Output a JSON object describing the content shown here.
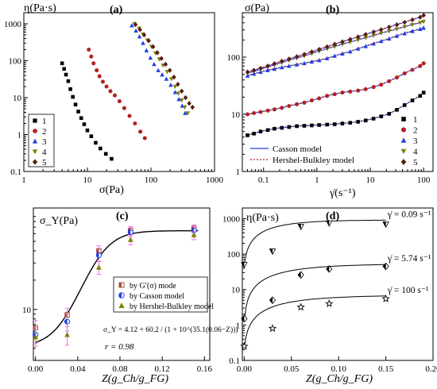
{
  "chart_data": [
    {
      "panel": "(a)",
      "type": "scatter",
      "xscale": "log",
      "yscale": "log",
      "xlim": [
        1,
        1000
      ],
      "ylim": [
        0.1,
        2000
      ],
      "xticks": [
        "1",
        "10",
        "100",
        "1000"
      ],
      "yticks": [
        "0.1",
        "1",
        "10",
        "100",
        "1000"
      ],
      "xlabel": "σ(Pa)",
      "ylabel": "η(Pa·s)",
      "legend_position": "bottom-left",
      "series": [
        {
          "name": "1",
          "marker": "square",
          "color": "#000000",
          "x": [
            4.0,
            4.3,
            4.6,
            5.0,
            5.4,
            5.9,
            6.5,
            7.2,
            8.0,
            8.9,
            10.0,
            11.5,
            13.5,
            16.0,
            19.5,
            24.0
          ],
          "y": [
            85,
            60,
            42,
            28,
            17,
            10.5,
            6.5,
            4.2,
            2.8,
            1.9,
            1.3,
            0.9,
            0.6,
            0.42,
            0.3,
            0.22
          ]
        },
        {
          "name": "2",
          "marker": "circle",
          "color": "#b22222",
          "x": [
            10.5,
            11.5,
            12.5,
            14.0,
            15.5,
            17.5,
            20.0,
            23.0,
            27.0,
            32.0,
            38.0,
            46.0,
            56.0,
            68.0,
            80.0
          ],
          "y": [
            200,
            130,
            85,
            55,
            38,
            27,
            20,
            15,
            11.5,
            8.0,
            5.2,
            3.2,
            2.0,
            1.2,
            0.8
          ]
        },
        {
          "name": "3",
          "marker": "triangle-up",
          "color": "#1f3fe0",
          "x": [
            50,
            58,
            66,
            75,
            85,
            98,
            112,
            130,
            150,
            175,
            205,
            240,
            275,
            310,
            345
          ],
          "y": [
            900,
            650,
            450,
            300,
            190,
            120,
            80,
            55,
            42,
            32,
            22,
            14,
            9,
            6,
            3.8
          ]
        },
        {
          "name": "4",
          "marker": "triangle-down",
          "color": "#808000",
          "x": [
            55,
            65,
            75,
            88,
            102,
            118,
            135,
            155,
            180,
            210,
            240,
            270,
            305,
            340,
            380
          ],
          "y": [
            1000,
            750,
            520,
            360,
            240,
            160,
            110,
            75,
            50,
            32,
            20,
            13,
            8.5,
            5.5,
            3.8
          ]
        },
        {
          "name": "5",
          "marker": "diamond",
          "color": "#5a1e14",
          "x": [
            57,
            67,
            78,
            92,
            108,
            126,
            146,
            170,
            198,
            230,
            265,
            305,
            350,
            400,
            450
          ],
          "y": [
            950,
            700,
            500,
            350,
            240,
            165,
            115,
            80,
            55,
            36,
            23,
            15,
            10,
            7,
            5.5
          ]
        }
      ]
    },
    {
      "panel": "(b)",
      "type": "scatter",
      "xscale": "log",
      "yscale": "log",
      "xlim": [
        0.04,
        150
      ],
      "ylim": [
        1,
        600
      ],
      "xticks": [
        "0.1",
        "1",
        "10",
        "100"
      ],
      "yticks": [
        "1",
        "10",
        "100"
      ],
      "xlabel": "γ̇(s⁻¹)",
      "ylabel": "σ(Pa)",
      "legend_position": "bottom-right",
      "model_legend": [
        "Casson model",
        "Hershel-Bulkley model"
      ],
      "series": [
        {
          "name": "1",
          "marker": "square",
          "color": "#000000",
          "x": [
            0.05,
            0.066,
            0.088,
            0.12,
            0.16,
            0.22,
            0.3,
            0.42,
            0.58,
            0.8,
            1.1,
            1.55,
            2.15,
            3.0,
            4.2,
            5.9,
            8.2,
            11.5,
            16,
            22.5,
            31.5,
            44,
            61.5,
            86,
            100
          ],
          "y": [
            4.3,
            4.6,
            5.0,
            5.3,
            5.6,
            5.8,
            6.0,
            6.2,
            6.3,
            6.4,
            6.5,
            6.6,
            6.7,
            6.9,
            7.1,
            7.4,
            7.8,
            8.4,
            9.2,
            10.2,
            12,
            14.5,
            17.5,
            21,
            24
          ]
        },
        {
          "name": "2",
          "marker": "circle",
          "color": "#b22222",
          "x": [
            0.05,
            0.066,
            0.088,
            0.12,
            0.16,
            0.22,
            0.3,
            0.42,
            0.58,
            0.8,
            1.1,
            1.55,
            2.15,
            3.0,
            4.2,
            5.9,
            8.2,
            11.5,
            16,
            22.5,
            31.5,
            44,
            61.5,
            86,
            100
          ],
          "y": [
            10,
            10.5,
            11,
            11.6,
            12.2,
            13,
            14,
            15,
            16,
            17.5,
            19,
            21,
            22.5,
            24,
            25,
            26,
            27.5,
            30,
            33,
            38,
            44,
            52,
            60,
            70,
            78
          ]
        },
        {
          "name": "3",
          "marker": "triangle-up",
          "color": "#1f3fe0",
          "x": [
            0.05,
            0.066,
            0.088,
            0.12,
            0.16,
            0.22,
            0.3,
            0.42,
            0.58,
            0.8,
            1.1,
            1.55,
            2.15,
            3.0,
            4.2,
            5.9,
            8.2,
            11.5,
            16,
            22.5,
            31.5,
            44,
            61.5,
            86,
            100
          ],
          "y": [
            47,
            51,
            55,
            59,
            62,
            66,
            70,
            74,
            78,
            83,
            88,
            95,
            105,
            115,
            125,
            140,
            155,
            172,
            190,
            210,
            235,
            260,
            285,
            310,
            325
          ]
        },
        {
          "name": "4",
          "marker": "triangle-down",
          "color": "#808000",
          "x": [
            0.05,
            0.066,
            0.088,
            0.12,
            0.16,
            0.22,
            0.3,
            0.42,
            0.58,
            0.8,
            1.1,
            1.55,
            2.15,
            3.0,
            4.2,
            5.9,
            8.2,
            11.5,
            16,
            22.5,
            31.5,
            44,
            61.5,
            86,
            100
          ],
          "y": [
            52,
            56,
            61,
            67,
            73,
            80,
            88,
            96,
            105,
            115,
            127,
            140,
            153,
            168,
            183,
            200,
            218,
            238,
            262,
            285,
            310,
            340,
            370,
            400,
            420
          ]
        },
        {
          "name": "5",
          "marker": "diamond",
          "color": "#5a1e14",
          "x": [
            0.05,
            0.066,
            0.088,
            0.12,
            0.16,
            0.22,
            0.3,
            0.42,
            0.58,
            0.8,
            1.1,
            1.55,
            2.15,
            3.0,
            4.2,
            5.9,
            8.2,
            11.5,
            16,
            22.5,
            31.5,
            44,
            61.5,
            86,
            100
          ],
          "y": [
            55,
            59,
            64,
            70,
            77,
            85,
            93,
            102,
            112,
            124,
            137,
            152,
            168,
            186,
            205,
            226,
            250,
            275,
            303,
            335,
            370,
            408,
            450,
            500,
            540
          ]
        }
      ]
    },
    {
      "panel": "(c)",
      "type": "scatter",
      "xscale": "linear",
      "yscale": "log",
      "xlim": [
        -0.002,
        0.165
      ],
      "ylim": [
        3,
        110
      ],
      "xticks": [
        "0.00",
        "0.04",
        "0.08",
        "0.12",
        "0.16"
      ],
      "yticks": [
        "10"
      ],
      "xlabel": "Z(g_Ch/g_FG)",
      "ylabel": "σ_Y(Pa)",
      "legend_position": "right",
      "equation": "σ_Y = 4.12 + 60.2 / (1 + 10^(35.1(0.06−Z)))",
      "r_text": "r = 0.98",
      "fit_curve": {
        "name": "σ_Y = 4.12 + 60.2/(1+10^(35.1(0.06−Z)))",
        "A": 4.12,
        "B": 60.2,
        "k": 35.1,
        "x0": 0.06
      },
      "series": [
        {
          "name": "by G′(σ) mode",
          "marker": "half-square",
          "color": "#a0522d",
          "x": [
            0.0,
            0.03,
            0.06,
            0.09,
            0.15
          ],
          "y": [
            6.5,
            8.8,
            40,
            65,
            68
          ],
          "err": [
            1.2,
            1.5,
            5,
            6,
            6
          ]
        },
        {
          "name": "by Casson model",
          "marker": "half-circle",
          "color": "#1f3fe0",
          "x": [
            0.0,
            0.03,
            0.06,
            0.09,
            0.15
          ],
          "y": [
            5.5,
            7.5,
            36,
            62,
            65
          ],
          "err": [
            1.0,
            1.5,
            5,
            6,
            6
          ]
        },
        {
          "name": "by Hershel-Bulkley model",
          "marker": "triangle-up",
          "color": "#808000",
          "x": [
            0.0,
            0.03,
            0.06,
            0.09,
            0.15
          ],
          "y": [
            5.2,
            5.5,
            27,
            52,
            58
          ],
          "err": [
            1.0,
            1.2,
            4,
            6,
            6
          ]
        }
      ]
    },
    {
      "panel": "(d)",
      "type": "scatter",
      "xscale": "linear",
      "yscale": "log",
      "xlim": [
        -0.002,
        0.2
      ],
      "ylim": [
        0.1,
        2000
      ],
      "xticks": [
        "0.00",
        "0.05",
        "0.10",
        "0.15",
        "0.20"
      ],
      "yticks": [
        "0.1",
        "1",
        "10",
        "100",
        "1000"
      ],
      "xlabel": "Z(g_Ch/g_FG)",
      "ylabel": "η(Pa·s)",
      "series": [
        {
          "name": "γ̇ = 0.09 s⁻¹",
          "marker": "triangle-down",
          "color": "#000000",
          "x": [
            0.0,
            0.03,
            0.06,
            0.09,
            0.15
          ],
          "y": [
            50,
            120,
            600,
            750,
            700
          ],
          "fit": {
            "a": 50,
            "b": 870,
            "c": 0.035
          }
        },
        {
          "name": "γ̇ = 5.74 s⁻¹",
          "marker": "diamond",
          "color": "#000000",
          "x": [
            0.0,
            0.03,
            0.06,
            0.09,
            0.15
          ],
          "y": [
            1.5,
            5,
            26,
            38,
            45
          ],
          "fit": {
            "a": 1.3,
            "b": 52,
            "c": 0.05
          }
        },
        {
          "name": "γ̇ = 100 s⁻¹",
          "marker": "star",
          "color": "#000000",
          "x": [
            0.0,
            0.03,
            0.06,
            0.09,
            0.15
          ],
          "y": [
            0.25,
            0.8,
            3.2,
            4.0,
            5.5
          ],
          "fit": {
            "a": 0.22,
            "b": 6.7,
            "c": 0.05
          }
        }
      ]
    }
  ]
}
